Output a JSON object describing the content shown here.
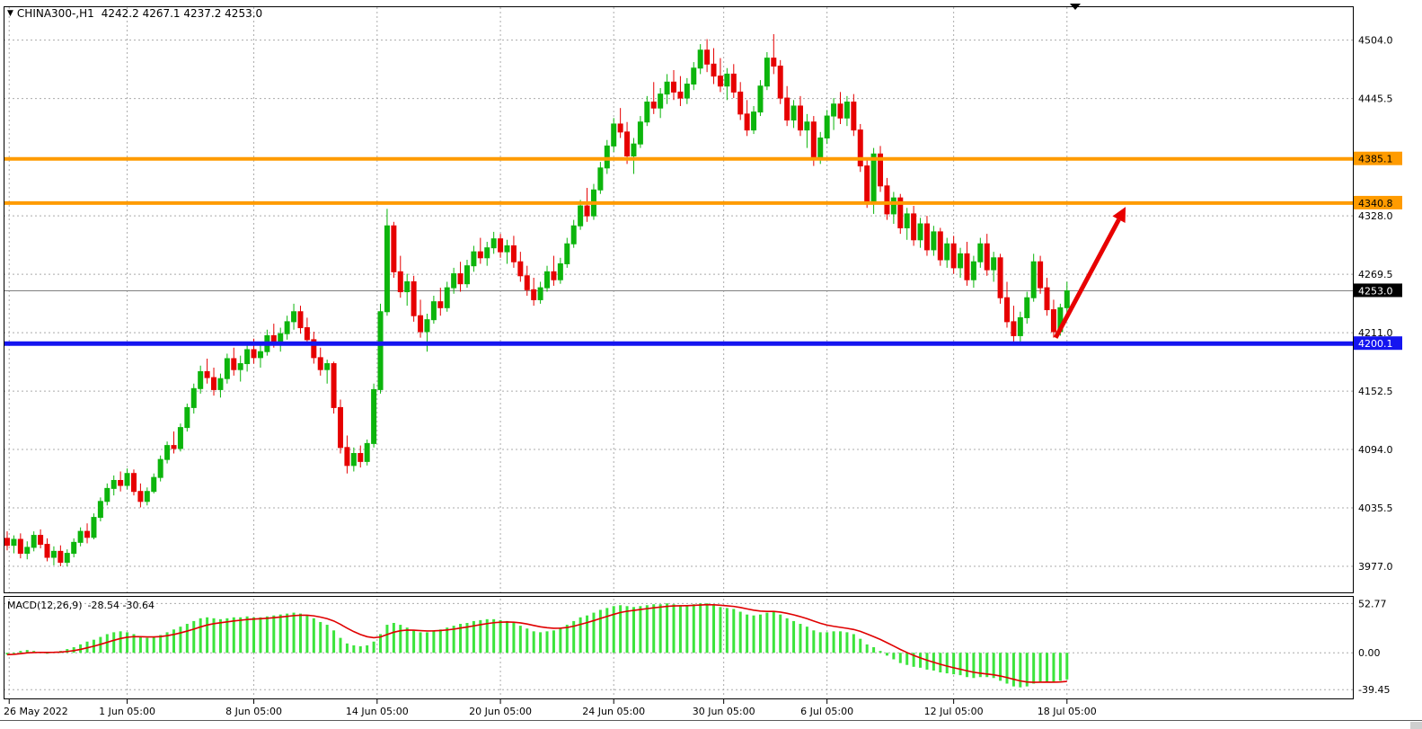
{
  "window": {
    "symbol_period": "CHINA300-,H1",
    "ohlc_text": "4242.2 4267.1 4237.2 4253.0"
  },
  "icons": {
    "dropdown": "▼"
  },
  "colors": {
    "up": "#0CB50C",
    "down": "#E60000",
    "grid": "#ABABAB",
    "border": "#000000",
    "orange_level": "#FF9B00",
    "blue_level": "#1515F0",
    "current_line": "#808080",
    "current_box": "#000000",
    "macd_bar": "#3CE43C",
    "macd_signal": "#E00000",
    "arrow": "#E80000"
  },
  "chart_data": {
    "type": "candlestick",
    "symbol": "CHINA300-",
    "timeframe": "H1",
    "last_ohlc": {
      "open": 4242.2,
      "high": 4267.1,
      "low": 4237.2,
      "close": 4253.0
    },
    "price_axis": {
      "ylim": [
        3950,
        4537
      ],
      "ticks": [
        {
          "label": "4504.0",
          "value": 4504.0
        },
        {
          "label": "4445.5",
          "value": 4445.5
        },
        {
          "label": "4328.0",
          "value": 4328.0
        },
        {
          "label": "4269.5",
          "value": 4269.5
        },
        {
          "label": "4211.0",
          "value": 4211.0
        },
        {
          "label": "4152.5",
          "value": 4152.5
        },
        {
          "label": "4094.0",
          "value": 4094.0
        },
        {
          "label": "4035.5",
          "value": 4035.5
        },
        {
          "label": "3977.0",
          "value": 3977.0
        }
      ]
    },
    "x_ticks": [
      {
        "label": "26 May 2022",
        "i": 0.3
      },
      {
        "label": "1 Jun 05:00",
        "i": 18
      },
      {
        "label": "8 Jun 05:00",
        "i": 37
      },
      {
        "label": "14 Jun 05:00",
        "i": 55.5
      },
      {
        "label": "20 Jun 05:00",
        "i": 74
      },
      {
        "label": "24 Jun 05:00",
        "i": 91
      },
      {
        "label": "30 Jun 05:00",
        "i": 107.5
      },
      {
        "label": "6 Jul 05:00",
        "i": 123
      },
      {
        "label": "12 Jul 05:00",
        "i": 142
      },
      {
        "label": "18 Jul 05:00",
        "i": 159
      }
    ],
    "levels": [
      {
        "value": 4385.1,
        "label": "4385.1",
        "color": "#FF9B00",
        "thickness": 4,
        "text_color": "#000000"
      },
      {
        "value": 4340.8,
        "label": "4340.8",
        "color": "#FF9B00",
        "thickness": 4,
        "text_color": "#000000"
      },
      {
        "value": 4200.1,
        "label": "4200.1",
        "color": "#1515F0",
        "thickness": 5,
        "text_color": "#FFFFFF"
      }
    ],
    "current_price": {
      "value": 4253.0,
      "label": "4253.0"
    },
    "arrow": {
      "from": {
        "i": 157.3,
        "price": 4206
      },
      "to": {
        "i": 167.8,
        "price": 4337
      }
    },
    "candles": [
      [
        4005,
        4012,
        3993,
        3998
      ],
      [
        3998,
        4008,
        3990,
        4004
      ],
      [
        4004,
        4010,
        3985,
        3990
      ],
      [
        3990,
        4002,
        3984,
        3996
      ],
      [
        3996,
        4012,
        3992,
        4008
      ],
      [
        4008,
        4014,
        3995,
        3999
      ],
      [
        3999,
        4005,
        3982,
        3986
      ],
      [
        3986,
        3997,
        3978,
        3992
      ],
      [
        3992,
        3998,
        3977,
        3981
      ],
      [
        3981,
        3994,
        3977,
        3990
      ],
      [
        3990,
        4005,
        3986,
        4001
      ],
      [
        4001,
        4016,
        3997,
        4012
      ],
      [
        4012,
        4020,
        4000,
        4006
      ],
      [
        4006,
        4030,
        4004,
        4026
      ],
      [
        4026,
        4046,
        4022,
        4042
      ],
      [
        4042,
        4060,
        4038,
        4055
      ],
      [
        4055,
        4068,
        4048,
        4063
      ],
      [
        4063,
        4072,
        4052,
        4058
      ],
      [
        4058,
        4075,
        4054,
        4070
      ],
      [
        4070,
        4074,
        4048,
        4052
      ],
      [
        4052,
        4060,
        4036,
        4042
      ],
      [
        4042,
        4056,
        4038,
        4052
      ],
      [
        4052,
        4070,
        4050,
        4066
      ],
      [
        4066,
        4088,
        4062,
        4084
      ],
      [
        4084,
        4102,
        4080,
        4098
      ],
      [
        4098,
        4112,
        4090,
        4095
      ],
      [
        4095,
        4120,
        4092,
        4116
      ],
      [
        4116,
        4140,
        4112,
        4136
      ],
      [
        4136,
        4160,
        4130,
        4155
      ],
      [
        4155,
        4178,
        4150,
        4172
      ],
      [
        4172,
        4185,
        4160,
        4166
      ],
      [
        4166,
        4176,
        4148,
        4154
      ],
      [
        4154,
        4170,
        4146,
        4165
      ],
      [
        4165,
        4190,
        4160,
        4185
      ],
      [
        4185,
        4196,
        4168,
        4174
      ],
      [
        4174,
        4188,
        4162,
        4180
      ],
      [
        4180,
        4200,
        4172,
        4194
      ],
      [
        4194,
        4205,
        4180,
        4186
      ],
      [
        4186,
        4198,
        4176,
        4192
      ],
      [
        4192,
        4214,
        4188,
        4208
      ],
      [
        4208,
        4220,
        4196,
        4202
      ],
      [
        4202,
        4216,
        4192,
        4210
      ],
      [
        4210,
        4228,
        4204,
        4222
      ],
      [
        4222,
        4240,
        4214,
        4232
      ],
      [
        4232,
        4238,
        4210,
        4216
      ],
      [
        4216,
        4226,
        4198,
        4204
      ],
      [
        4204,
        4212,
        4180,
        4186
      ],
      [
        4186,
        4196,
        4168,
        4174
      ],
      [
        4174,
        4184,
        4160,
        4180
      ],
      [
        4180,
        4182,
        4130,
        4136
      ],
      [
        4136,
        4144,
        4090,
        4096
      ],
      [
        4096,
        4108,
        4070,
        4078
      ],
      [
        4078,
        4096,
        4072,
        4090
      ],
      [
        4090,
        4098,
        4076,
        4082
      ],
      [
        4082,
        4104,
        4078,
        4100
      ],
      [
        4100,
        4160,
        4096,
        4154
      ],
      [
        4154,
        4240,
        4150,
        4232
      ],
      [
        4232,
        4335,
        4228,
        4318
      ],
      [
        4318,
        4322,
        4266,
        4272
      ],
      [
        4272,
        4288,
        4246,
        4252
      ],
      [
        4252,
        4270,
        4238,
        4262
      ],
      [
        4262,
        4268,
        4222,
        4228
      ],
      [
        4228,
        4244,
        4206,
        4212
      ],
      [
        4212,
        4230,
        4192,
        4224
      ],
      [
        4224,
        4248,
        4220,
        4242
      ],
      [
        4242,
        4256,
        4228,
        4236
      ],
      [
        4236,
        4262,
        4232,
        4256
      ],
      [
        4256,
        4276,
        4250,
        4270
      ],
      [
        4270,
        4282,
        4252,
        4260
      ],
      [
        4260,
        4284,
        4256,
        4278
      ],
      [
        4278,
        4298,
        4272,
        4292
      ],
      [
        4292,
        4306,
        4280,
        4286
      ],
      [
        4286,
        4302,
        4278,
        4296
      ],
      [
        4296,
        4312,
        4290,
        4305
      ],
      [
        4305,
        4310,
        4286,
        4292
      ],
      [
        4292,
        4304,
        4280,
        4298
      ],
      [
        4298,
        4308,
        4276,
        4282
      ],
      [
        4282,
        4292,
        4262,
        4268
      ],
      [
        4268,
        4278,
        4248,
        4254
      ],
      [
        4254,
        4266,
        4238,
        4244
      ],
      [
        4244,
        4262,
        4240,
        4256
      ],
      [
        4256,
        4278,
        4252,
        4272
      ],
      [
        4272,
        4288,
        4258,
        4264
      ],
      [
        4264,
        4286,
        4260,
        4280
      ],
      [
        4280,
        4306,
        4276,
        4300
      ],
      [
        4300,
        4324,
        4296,
        4318
      ],
      [
        4318,
        4344,
        4314,
        4338
      ],
      [
        4338,
        4356,
        4322,
        4328
      ],
      [
        4328,
        4360,
        4324,
        4354
      ],
      [
        4354,
        4382,
        4350,
        4376
      ],
      [
        4376,
        4404,
        4370,
        4398
      ],
      [
        4398,
        4426,
        4392,
        4420
      ],
      [
        4420,
        4436,
        4406,
        4412
      ],
      [
        4412,
        4422,
        4380,
        4388
      ],
      [
        4388,
        4406,
        4370,
        4400
      ],
      [
        4400,
        4428,
        4396,
        4422
      ],
      [
        4422,
        4448,
        4418,
        4442
      ],
      [
        4442,
        4462,
        4430,
        4436
      ],
      [
        4436,
        4456,
        4426,
        4450
      ],
      [
        4450,
        4470,
        4440,
        4462
      ],
      [
        4462,
        4474,
        4444,
        4452
      ],
      [
        4452,
        4468,
        4438,
        4446
      ],
      [
        4446,
        4466,
        4440,
        4460
      ],
      [
        4460,
        4482,
        4454,
        4476
      ],
      [
        4476,
        4500,
        4470,
        4494
      ],
      [
        4494,
        4505,
        4472,
        4480
      ],
      [
        4480,
        4496,
        4460,
        4468
      ],
      [
        4468,
        4486,
        4452,
        4458
      ],
      [
        4458,
        4476,
        4444,
        4470
      ],
      [
        4470,
        4480,
        4446,
        4452
      ],
      [
        4452,
        4462,
        4424,
        4430
      ],
      [
        4430,
        4444,
        4408,
        4414
      ],
      [
        4414,
        4438,
        4410,
        4432
      ],
      [
        4432,
        4464,
        4428,
        4458
      ],
      [
        4458,
        4492,
        4454,
        4486
      ],
      [
        4486,
        4510,
        4470,
        4478
      ],
      [
        4478,
        4484,
        4440,
        4446
      ],
      [
        4446,
        4458,
        4418,
        4424
      ],
      [
        4424,
        4444,
        4416,
        4438
      ],
      [
        4438,
        4448,
        4408,
        4414
      ],
      [
        4414,
        4430,
        4396,
        4422
      ],
      [
        4422,
        4428,
        4378,
        4386
      ],
      [
        4386,
        4412,
        4380,
        4406
      ],
      [
        4406,
        4434,
        4400,
        4428
      ],
      [
        4428,
        4446,
        4414,
        4440
      ],
      [
        4440,
        4452,
        4420,
        4426
      ],
      [
        4426,
        4448,
        4418,
        4442
      ],
      [
        4442,
        4450,
        4408,
        4414
      ],
      [
        4414,
        4420,
        4372,
        4378
      ],
      [
        4378,
        4386,
        4336,
        4342
      ],
      [
        4342,
        4396,
        4330,
        4390
      ],
      [
        4390,
        4398,
        4352,
        4358
      ],
      [
        4358,
        4366,
        4324,
        4330
      ],
      [
        4330,
        4352,
        4320,
        4346
      ],
      [
        4346,
        4350,
        4310,
        4316
      ],
      [
        4316,
        4336,
        4304,
        4330
      ],
      [
        4330,
        4338,
        4298,
        4304
      ],
      [
        4304,
        4326,
        4296,
        4320
      ],
      [
        4320,
        4328,
        4288,
        4294
      ],
      [
        4294,
        4318,
        4288,
        4312
      ],
      [
        4312,
        4316,
        4278,
        4284
      ],
      [
        4284,
        4306,
        4276,
        4300
      ],
      [
        4300,
        4308,
        4270,
        4276
      ],
      [
        4276,
        4296,
        4266,
        4290
      ],
      [
        4290,
        4302,
        4258,
        4264
      ],
      [
        4264,
        4288,
        4256,
        4282
      ],
      [
        4282,
        4306,
        4276,
        4300
      ],
      [
        4300,
        4310,
        4268,
        4274
      ],
      [
        4274,
        4292,
        4262,
        4286
      ],
      [
        4286,
        4290,
        4240,
        4246
      ],
      [
        4246,
        4262,
        4216,
        4222
      ],
      [
        4222,
        4238,
        4200,
        4208
      ],
      [
        4208,
        4232,
        4202,
        4226
      ],
      [
        4226,
        4252,
        4220,
        4246
      ],
      [
        4246,
        4290,
        4242,
        4282
      ],
      [
        4282,
        4288,
        4250,
        4256
      ],
      [
        4256,
        4266,
        4228,
        4234
      ],
      [
        4234,
        4244,
        4206,
        4212
      ],
      [
        4212,
        4240,
        4208,
        4236
      ],
      [
        4236,
        4262,
        4230,
        4253
      ]
    ],
    "macd": {
      "label": "MACD(12,26,9)",
      "values_text": "-28.54 -30.64",
      "macd_value": -28.54,
      "signal_value": -30.64,
      "ylim": [
        -46,
        58
      ],
      "ticks": [
        {
          "label": "52.77",
          "value": 52.77
        },
        {
          "label": "0.00",
          "value": 0
        },
        {
          "label": "-39.45",
          "value": -39.45
        }
      ],
      "histogram": [
        -2,
        0,
        2,
        3,
        2,
        1,
        0,
        1,
        2,
        4,
        6,
        9,
        12,
        14,
        17,
        20,
        22,
        23,
        22,
        20,
        17,
        16,
        17,
        19,
        22,
        25,
        28,
        31,
        34,
        37,
        38,
        37,
        36,
        37,
        38,
        38,
        39,
        38,
        38,
        39,
        40,
        41,
        42,
        43,
        42,
        40,
        37,
        33,
        30,
        24,
        16,
        10,
        8,
        7,
        8,
        12,
        20,
        30,
        32,
        30,
        27,
        24,
        22,
        22,
        24,
        25,
        27,
        29,
        31,
        32,
        34,
        35,
        36,
        36,
        35,
        34,
        32,
        29,
        26,
        23,
        22,
        23,
        24,
        27,
        30,
        34,
        38,
        40,
        43,
        46,
        48,
        50,
        51,
        50,
        49,
        50,
        51,
        52,
        52,
        53,
        52,
        51,
        51,
        52,
        53,
        53,
        51,
        49,
        48,
        47,
        44,
        41,
        40,
        41,
        43,
        44,
        41,
        37,
        34,
        31,
        28,
        24,
        22,
        22,
        23,
        23,
        22,
        20,
        15,
        9,
        6,
        2,
        -3,
        -7,
        -11,
        -13,
        -15,
        -16,
        -18,
        -19,
        -21,
        -22,
        -23,
        -24,
        -26,
        -27,
        -26,
        -26,
        -27,
        -30,
        -33,
        -36,
        -37,
        -36,
        -33,
        -31,
        -31,
        -32,
        -30,
        -28.54
      ],
      "signal_period": 9
    }
  }
}
